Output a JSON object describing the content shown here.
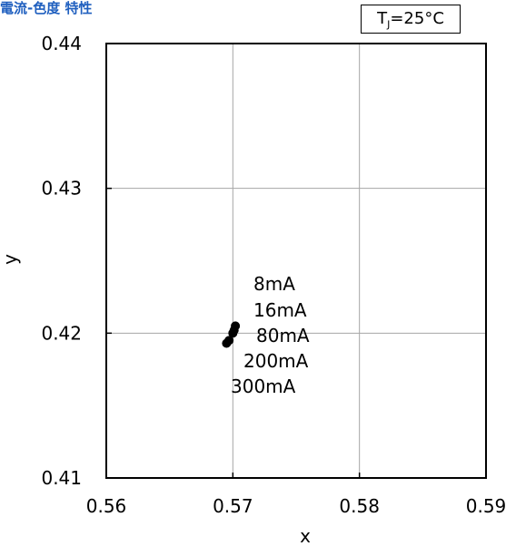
{
  "header": {
    "title": "電流-色度 特性",
    "condition": "TJ=25°C",
    "condition_main": "T",
    "condition_sub": "J",
    "condition_rest": "=25°C"
  },
  "chart_data": {
    "type": "scatter",
    "title": "電流-色度 特性",
    "xlabel": "x",
    "ylabel": "y",
    "xlim": [
      0.56,
      0.59
    ],
    "ylim": [
      0.41,
      0.44
    ],
    "x_ticks": [
      0.56,
      0.57,
      0.58,
      0.59
    ],
    "x_tick_labels": [
      "0.56",
      "0.57",
      "0.58",
      "0.59"
    ],
    "y_ticks": [
      0.41,
      0.42,
      0.43,
      0.44
    ],
    "y_tick_labels": [
      "0.41",
      "0.42",
      "0.43",
      "0.44"
    ],
    "grid": true,
    "legend": "none",
    "annotation": "TJ=25°C",
    "series": [
      {
        "color": "#000000",
        "points": [
          {
            "x": 0.5702,
            "y": 0.4205,
            "label": "8mA"
          },
          {
            "x": 0.5701,
            "y": 0.4202,
            "label": "16mA"
          },
          {
            "x": 0.57,
            "y": 0.42,
            "label": "80mA"
          },
          {
            "x": 0.5697,
            "y": 0.4195,
            "label": "200mA"
          },
          {
            "x": 0.5695,
            "y": 0.4193,
            "label": "300mA"
          }
        ]
      }
    ]
  }
}
